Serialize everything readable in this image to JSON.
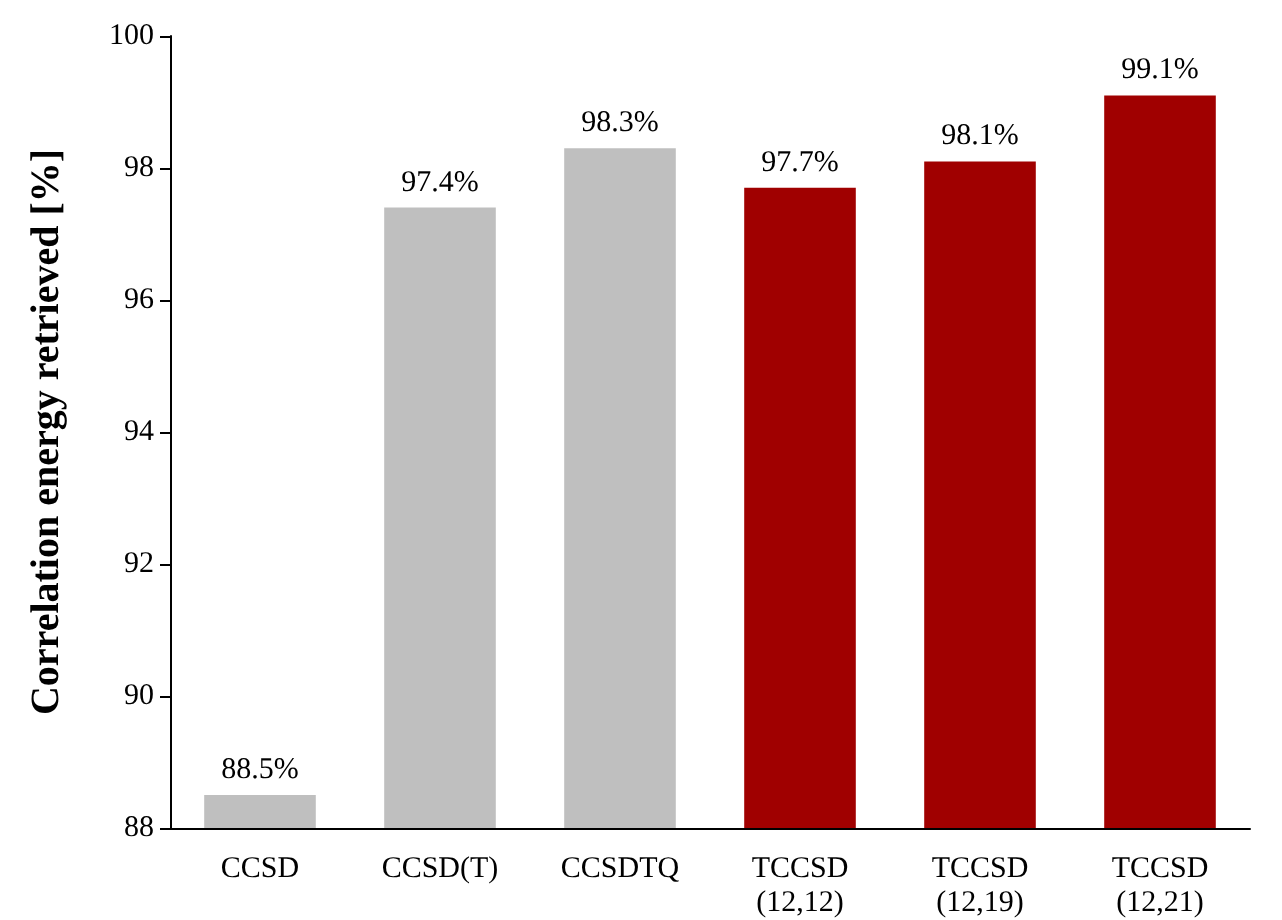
{
  "chart_data": {
    "type": "bar",
    "ylabel": "Correlation energy retrieved [%]",
    "categories": [
      "CCSD",
      "CCSD(T)",
      "CCSDTQ",
      "TCCSD\n(12,12)",
      "TCCSD\n(12,19)",
      "TCCSD\n(12,21)"
    ],
    "values": [
      88.5,
      97.4,
      98.3,
      97.7,
      98.1,
      99.1
    ],
    "colors": [
      "#bfbfbf",
      "#bfbfbf",
      "#bfbfbf",
      "#a00000",
      "#a00000",
      "#a00000"
    ],
    "value_labels": [
      "88.5%",
      "97.4%",
      "98.3%",
      "97.7%",
      "98.1%",
      "99.1%"
    ],
    "ylim": [
      88,
      100
    ],
    "yticks": [
      88,
      90,
      92,
      94,
      96,
      98,
      100
    ],
    "grid": false
  }
}
